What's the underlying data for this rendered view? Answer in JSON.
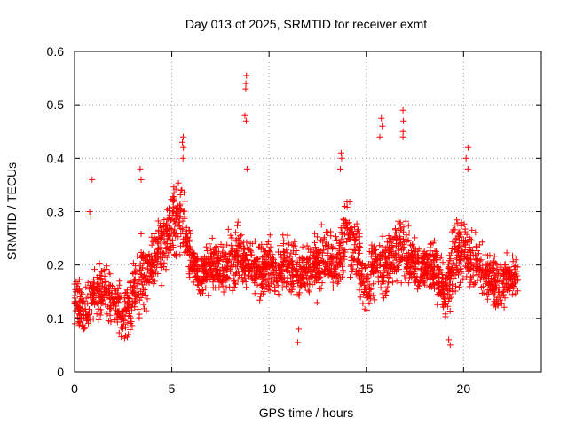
{
  "chart_data": {
    "type": "scatter",
    "title": "Day 013 of 2025, SRMTID for receiver exmt",
    "xlabel": "GPS time / hours",
    "ylabel": "SRMTID / TECUs",
    "xlim": [
      0,
      24
    ],
    "ylim": [
      0,
      0.6
    ],
    "x_ticks": [
      0,
      5,
      10,
      15,
      20
    ],
    "x_tick_labels": [
      "0",
      "5",
      "10",
      "15",
      "20"
    ],
    "y_ticks": [
      0,
      0.1,
      0.2,
      0.3,
      0.4,
      0.5,
      0.6
    ],
    "y_tick_labels": [
      "0",
      "0.1",
      "0.2",
      "0.3",
      "0.4",
      "0.5",
      "0.6"
    ],
    "grid": true,
    "marker": "+",
    "color": "#ff0000",
    "data_end_hour": 22.8,
    "series": [
      {
        "name": "SRMTID",
        "x": [
          0.0,
          0.5,
          1.0,
          1.5,
          2.0,
          2.5,
          3.0,
          3.5,
          4.0,
          4.5,
          5.0,
          5.5,
          6.0,
          6.5,
          7.0,
          7.5,
          8.0,
          8.5,
          9.0,
          9.5,
          10.0,
          10.5,
          11.0,
          11.5,
          12.0,
          12.5,
          13.0,
          13.5,
          14.0,
          14.5,
          15.0,
          15.5,
          16.0,
          16.5,
          17.0,
          17.5,
          18.0,
          18.5,
          19.0,
          19.5,
          20.0,
          20.5,
          21.0,
          21.5,
          22.0,
          22.5
        ],
        "y": [
          0.13,
          0.12,
          0.15,
          0.15,
          0.14,
          0.1,
          0.15,
          0.18,
          0.2,
          0.24,
          0.27,
          0.3,
          0.21,
          0.18,
          0.2,
          0.19,
          0.21,
          0.22,
          0.2,
          0.19,
          0.2,
          0.19,
          0.2,
          0.18,
          0.19,
          0.2,
          0.21,
          0.2,
          0.27,
          0.22,
          0.16,
          0.2,
          0.19,
          0.23,
          0.22,
          0.2,
          0.19,
          0.2,
          0.15,
          0.21,
          0.23,
          0.2,
          0.19,
          0.17,
          0.16,
          0.18
        ],
        "spread": [
          0.04,
          0.05,
          0.05,
          0.05,
          0.05,
          0.05,
          0.07,
          0.08,
          0.06,
          0.06,
          0.07,
          0.07,
          0.05,
          0.05,
          0.05,
          0.05,
          0.06,
          0.06,
          0.05,
          0.05,
          0.05,
          0.05,
          0.06,
          0.05,
          0.05,
          0.06,
          0.06,
          0.06,
          0.07,
          0.06,
          0.05,
          0.07,
          0.06,
          0.08,
          0.06,
          0.05,
          0.05,
          0.05,
          0.06,
          0.07,
          0.06,
          0.06,
          0.05,
          0.05,
          0.05,
          0.05
        ],
        "peaks": [
          {
            "x": 0.85,
            "y": [
              0.29,
              0.3,
              0.36
            ]
          },
          {
            "x": 3.4,
            "y": [
              0.36,
              0.38
            ]
          },
          {
            "x": 5.55,
            "y": [
              0.4,
              0.42,
              0.43,
              0.44
            ]
          },
          {
            "x": 8.8,
            "y": [
              0.38,
              0.47,
              0.48,
              0.53,
              0.54,
              0.555
            ]
          },
          {
            "x": 13.7,
            "y": [
              0.38,
              0.4,
              0.41
            ]
          },
          {
            "x": 15.75,
            "y": [
              0.44,
              0.46,
              0.475
            ]
          },
          {
            "x": 16.85,
            "y": [
              0.44,
              0.45,
              0.47,
              0.49
            ]
          },
          {
            "x": 20.2,
            "y": [
              0.38,
              0.4,
              0.42
            ]
          },
          {
            "x": 19.3,
            "y": [
              0.05,
              0.06
            ]
          },
          {
            "x": 2.75,
            "y": [
              0.065,
              0.07
            ]
          },
          {
            "x": 11.55,
            "y": [
              0.055,
              0.08
            ]
          }
        ]
      }
    ]
  }
}
